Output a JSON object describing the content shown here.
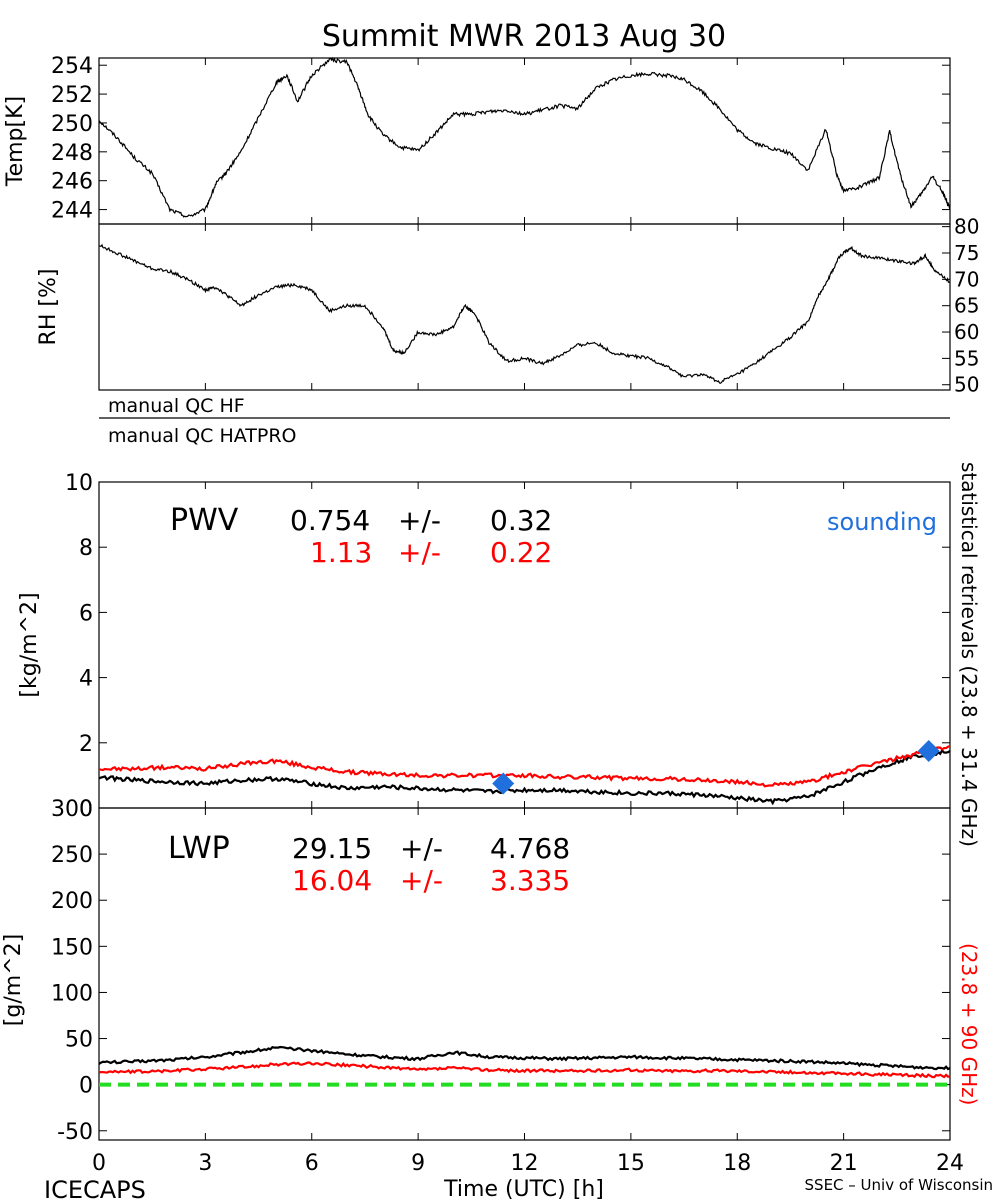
{
  "title": "Summit MWR 2013 Aug 30",
  "footer": {
    "left": "ICECAPS",
    "center": "Time (UTC) [h]",
    "right": "SSEC – Univ of Wisconsin"
  },
  "right_labels": {
    "statistical": "statistical  retrievals  (23.8 + 31.4 GHz)",
    "red": "(23.8 + 90 GHz)"
  },
  "qc": {
    "hf": "manual  QC  HF",
    "hatpro": "manual  QC  HATPRO"
  },
  "colors": {
    "black_series": "#000000",
    "red_series": "#ff0000",
    "sounding": "#1f6fdc",
    "zero_line": "#22dd22"
  },
  "chart_data": [
    {
      "type": "line",
      "panel": "temperature",
      "ylabel": "Temp[K]",
      "ylim": [
        243,
        254.5
      ],
      "yticks": [
        244,
        246,
        248,
        250,
        252,
        254
      ],
      "xlim": [
        0,
        24
      ],
      "series": [
        {
          "color": "#000000",
          "x": [
            0,
            0.5,
            1,
            1.5,
            2,
            2.5,
            3,
            3.3,
            3.6,
            4,
            4.5,
            5,
            5.3,
            5.6,
            6,
            6.5,
            7,
            7.3,
            7.6,
            8,
            8.5,
            9,
            9.5,
            10,
            10.5,
            11,
            11.5,
            12,
            12.5,
            13,
            13.5,
            14,
            14.5,
            15,
            15.5,
            16,
            16.5,
            17,
            17.5,
            18,
            18.5,
            19,
            19.5,
            20,
            20.5,
            20.8,
            21,
            21.5,
            22,
            22.3,
            22.6,
            22.9,
            23.2,
            23.5,
            23.8,
            24
          ],
          "values": [
            250.2,
            249,
            247.6,
            246.5,
            244,
            243.5,
            244,
            245.8,
            246.6,
            248,
            250.4,
            252.8,
            253.3,
            251.5,
            253.3,
            254.4,
            254.2,
            252.5,
            250.5,
            249.2,
            248.3,
            248.1,
            249.3,
            250.6,
            250.6,
            250.8,
            250.9,
            250.6,
            250.9,
            251.2,
            251,
            252.4,
            253,
            253.3,
            253.4,
            253.3,
            253,
            252.2,
            251,
            249.5,
            248.6,
            248.2,
            247.9,
            246.7,
            249.6,
            246.5,
            245.3,
            245.6,
            246.2,
            249.4,
            246.4,
            244.2,
            245.1,
            246.3,
            245.2,
            244
          ]
        }
      ]
    },
    {
      "type": "line",
      "panel": "relative_humidity",
      "ylabel": "RH [%]",
      "ylim": [
        49,
        80.5
      ],
      "yticks": [
        50,
        55,
        60,
        65,
        70,
        75,
        80
      ],
      "xlim": [
        0,
        24
      ],
      "series": [
        {
          "color": "#000000",
          "x": [
            0,
            0.5,
            1,
            1.5,
            2,
            2.5,
            3,
            3.3,
            3.6,
            4,
            4.5,
            5,
            5.5,
            6,
            6.5,
            7,
            7.5,
            8,
            8.3,
            8.6,
            9,
            9.5,
            10,
            10.3,
            10.6,
            11,
            11.5,
            12,
            12.5,
            13,
            13.5,
            14,
            14.5,
            15,
            15.5,
            16,
            16.5,
            17,
            17.5,
            18,
            18.5,
            19,
            19.5,
            20,
            20.3,
            20.6,
            20.9,
            21.2,
            21.5,
            22,
            22.5,
            23,
            23.3,
            23.6,
            24
          ],
          "values": [
            76.5,
            75,
            73.5,
            72,
            71.5,
            70,
            68,
            68.5,
            67,
            65,
            67,
            68.5,
            69,
            68,
            64,
            65,
            65,
            61,
            56.5,
            56,
            60,
            59.5,
            61,
            65,
            63.5,
            58,
            54.5,
            55,
            54,
            55.5,
            57.5,
            58,
            56,
            55.5,
            55,
            53.5,
            51.5,
            52,
            50.5,
            52,
            54,
            56.5,
            59,
            62,
            67,
            70.5,
            74.5,
            76,
            74.5,
            74,
            73.5,
            73,
            74.5,
            71.5,
            69.5
          ]
        }
      ]
    },
    {
      "type": "line",
      "panel": "pwv",
      "ylabel": "[kg/m^2]",
      "ylim": [
        0,
        10
      ],
      "yticks": [
        0,
        2,
        4,
        6,
        8,
        10
      ],
      "xlim": [
        0,
        24
      ],
      "annotation_label": "PWV",
      "stats": [
        {
          "mean": "0.754",
          "pm": "+/-",
          "sd": "0.32",
          "color": "#000000"
        },
        {
          "mean": "1.13",
          "pm": "+/-",
          "sd": "0.22",
          "color": "#ff0000"
        }
      ],
      "sounding_label": "sounding",
      "sounding": [
        {
          "x": 11.4,
          "y": 0.75
        },
        {
          "x": 23.4,
          "y": 1.75
        }
      ],
      "series": [
        {
          "color": "#000000",
          "x": [
            0,
            1,
            2,
            3,
            4,
            5,
            6,
            7,
            8,
            9,
            10,
            11,
            12,
            13,
            14,
            15,
            16,
            17,
            18,
            19,
            20,
            21,
            22,
            23,
            24
          ],
          "values": [
            0.95,
            0.85,
            0.8,
            0.75,
            0.85,
            0.9,
            0.75,
            0.6,
            0.65,
            0.6,
            0.55,
            0.5,
            0.55,
            0.55,
            0.5,
            0.45,
            0.45,
            0.4,
            0.3,
            0.2,
            0.35,
            0.8,
            1.25,
            1.6,
            1.75
          ]
        },
        {
          "color": "#ff0000",
          "x": [
            0,
            1,
            2,
            3,
            4,
            5,
            6,
            7,
            8,
            9,
            10,
            11,
            12,
            13,
            14,
            15,
            16,
            17,
            18,
            19,
            20,
            21,
            22,
            23,
            24
          ],
          "values": [
            1.2,
            1.2,
            1.25,
            1.2,
            1.35,
            1.45,
            1.25,
            1.1,
            1.05,
            1.0,
            1.0,
            1.0,
            1.0,
            0.95,
            0.95,
            0.9,
            0.9,
            0.85,
            0.8,
            0.7,
            0.8,
            1.1,
            1.4,
            1.65,
            1.9
          ]
        }
      ]
    },
    {
      "type": "line",
      "panel": "lwp",
      "ylabel": "[g/m^2]",
      "ylim": [
        -60,
        300
      ],
      "yticks": [
        -50,
        0,
        50,
        100,
        150,
        200,
        250,
        300
      ],
      "xlim": [
        0,
        24
      ],
      "xticks": [
        0,
        3,
        6,
        9,
        12,
        15,
        18,
        21,
        24
      ],
      "annotation_label": "LWP",
      "stats": [
        {
          "mean": "29.15",
          "pm": "+/-",
          "sd": "4.768",
          "color": "#000000"
        },
        {
          "mean": "16.04",
          "pm": "+/-",
          "sd": "3.335",
          "color": "#ff0000"
        }
      ],
      "zero_line": 0,
      "series": [
        {
          "color": "#000000",
          "x": [
            0,
            1,
            2,
            3,
            4,
            5,
            6,
            7,
            8,
            9,
            10,
            11,
            12,
            13,
            14,
            15,
            16,
            17,
            18,
            19,
            20,
            21,
            22,
            23,
            24
          ],
          "values": [
            24,
            25,
            27,
            30,
            35,
            40,
            37,
            33,
            30,
            28,
            35,
            30,
            29,
            28,
            29,
            30,
            29,
            28,
            27,
            26,
            25,
            23,
            21,
            19,
            18
          ]
        },
        {
          "color": "#ff0000",
          "x": [
            0,
            1,
            2,
            3,
            4,
            5,
            6,
            7,
            8,
            9,
            10,
            11,
            12,
            13,
            14,
            15,
            16,
            17,
            18,
            19,
            20,
            21,
            22,
            23,
            24
          ],
          "values": [
            14,
            14,
            15,
            17,
            19,
            22,
            23,
            21,
            19,
            16,
            18,
            16,
            15,
            15,
            15,
            16,
            15,
            15,
            15,
            14,
            13,
            12,
            11,
            10,
            9
          ]
        }
      ]
    }
  ]
}
